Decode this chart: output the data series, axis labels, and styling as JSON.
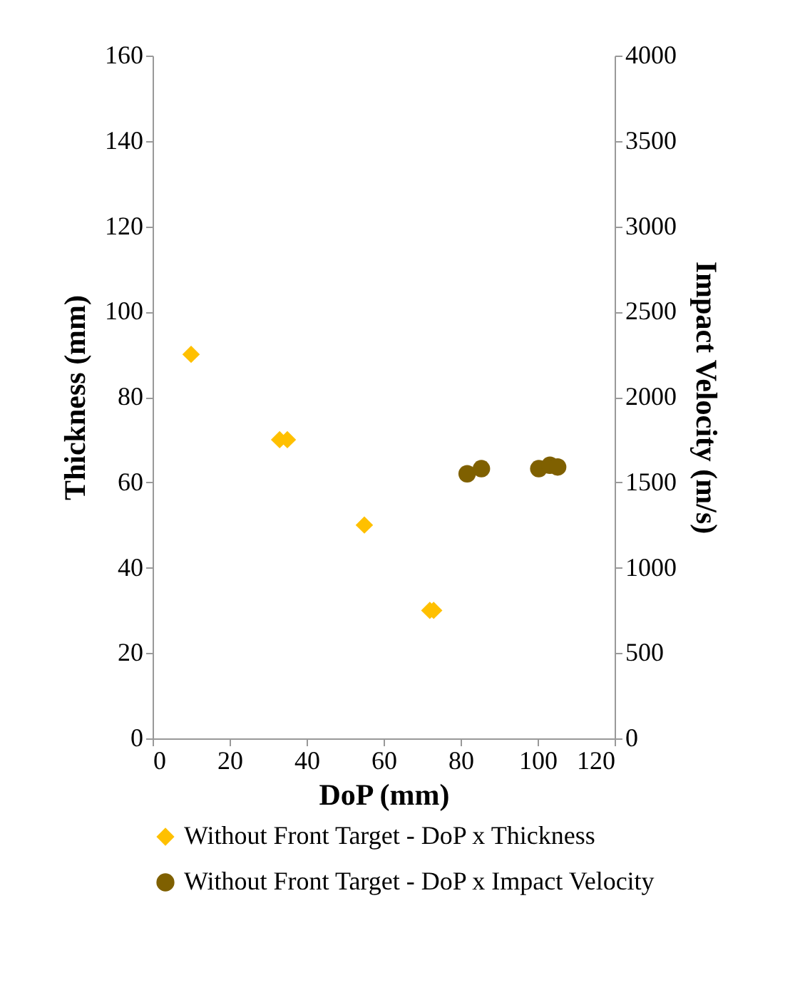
{
  "chart_data": {
    "type": "scatter",
    "xlabel": "DoP (mm)",
    "ylabel": "Thickness (mm)",
    "y2label": "Impact Velocity (m/s)",
    "xlim": [
      0,
      120
    ],
    "xticks": [
      0,
      20,
      40,
      60,
      80,
      100,
      120
    ],
    "ylim": [
      0,
      160
    ],
    "yticks": [
      0,
      20,
      40,
      60,
      80,
      100,
      120,
      140,
      160
    ],
    "y2lim": [
      0,
      4000
    ],
    "y2ticks": [
      0,
      500,
      1000,
      1500,
      2000,
      2500,
      3000,
      3500,
      4000
    ],
    "series": [
      {
        "name": "Without Front Target - DoP x Thickness",
        "color": "#ffc000",
        "marker": "diamond",
        "x": [
          10,
          33,
          35,
          55,
          72,
          73
        ],
        "values": [
          90,
          70,
          70,
          50,
          30,
          30
        ]
      },
      {
        "name": "Without Front Target - DoP x Impact Velocity",
        "color": "#7f6000",
        "marker": "circle",
        "axis": "y2",
        "x": [
          81.7,
          85.4,
          100.3,
          103.2,
          105.2
        ],
        "values": [
          1550,
          1580,
          1580,
          1600,
          1590
        ]
      }
    ],
    "grid": false,
    "legend": "bottom"
  }
}
